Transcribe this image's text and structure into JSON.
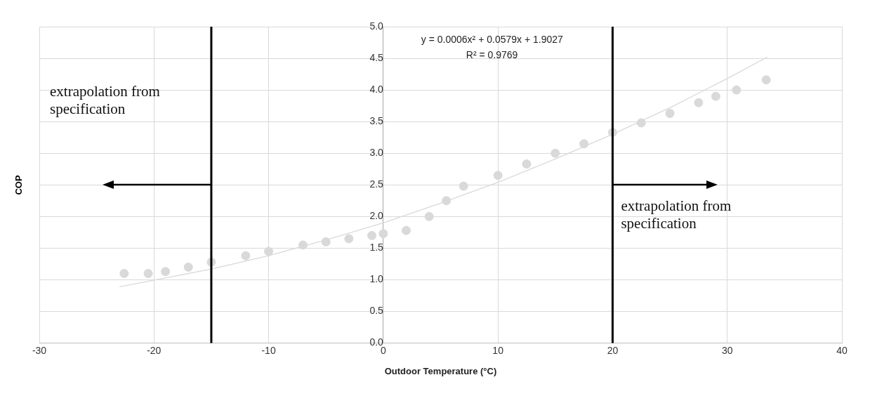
{
  "chart_data": {
    "type": "scatter",
    "xlabel": "Outdoor Temperature (°C)",
    "ylabel": "COP",
    "xlim": [
      -30,
      40
    ],
    "xticks": [
      -30,
      -20,
      -10,
      0,
      10,
      20,
      30,
      40
    ],
    "ylim": [
      0,
      5
    ],
    "yticks": [
      {
        "value": 0,
        "label": "0.0"
      },
      {
        "value": 0.5,
        "label": "0.5"
      },
      {
        "value": 1,
        "label": "1.0"
      },
      {
        "value": 1.5,
        "label": "1.5"
      },
      {
        "value": 2,
        "label": "2.0"
      },
      {
        "value": 2.5,
        "label": "2.5"
      },
      {
        "value": 3,
        "label": "3.0"
      },
      {
        "value": 3.5,
        "label": "3.5"
      },
      {
        "value": 4,
        "label": "4.0"
      },
      {
        "value": 4.5,
        "label": "4.5"
      },
      {
        "value": 5,
        "label": "5.0"
      }
    ],
    "grid": true,
    "legend": false,
    "marker": "circle",
    "series": [
      {
        "color": "#d9d9d9",
        "x": [
          -22.6,
          -20.5,
          -19,
          -17,
          -15,
          -12,
          -10,
          -7,
          -5,
          -3,
          -1,
          0,
          2,
          4,
          5.5,
          7,
          10,
          12.5,
          15,
          17.5,
          20,
          22.5,
          25,
          27.5,
          29,
          30.8,
          33.4
        ],
        "values": [
          1.1,
          1.1,
          1.13,
          1.2,
          1.28,
          1.38,
          1.45,
          1.55,
          1.6,
          1.65,
          1.7,
          1.73,
          1.78,
          2.0,
          2.25,
          2.48,
          2.65,
          2.83,
          3.0,
          3.15,
          3.33,
          3.48,
          3.63,
          3.8,
          3.9,
          4.0,
          4.16
        ]
      },
      {
        "type": "line",
        "color": "#d9d9d9",
        "marker": "none",
        "line_style": "solid",
        "x": [
          -23,
          -15,
          -10,
          -5,
          0,
          5,
          10,
          15,
          20,
          25,
          30,
          33.5
        ],
        "values": [
          0.89,
          1.17,
          1.38,
          1.63,
          1.9,
          2.21,
          2.54,
          2.91,
          3.3,
          3.72,
          4.18,
          4.52
        ]
      }
    ],
    "ref_lines": [
      {
        "axis": "x",
        "value": -15,
        "color": "#000000"
      },
      {
        "axis": "x",
        "value": 20,
        "color": "#000000"
      }
    ],
    "annotations": [
      "y = 0.0006x² + 0.0579x + 1.9027",
      "R² = 0.9769",
      "extrapolation from specification",
      "extrapolation from specification"
    ]
  }
}
